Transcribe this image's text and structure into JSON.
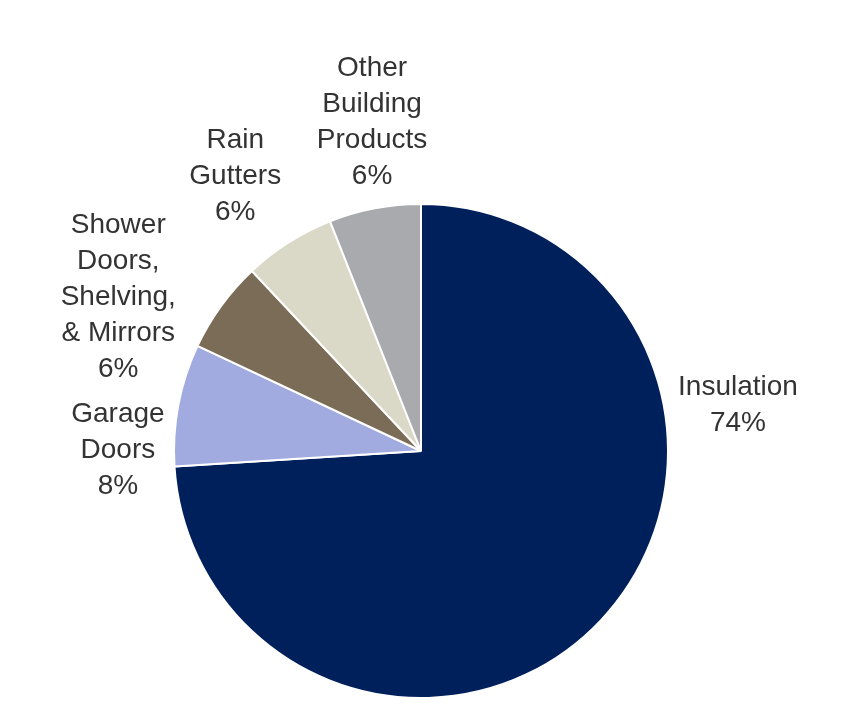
{
  "chart_data": {
    "type": "pie",
    "categories": [
      "Insulation",
      "Garage Doors",
      "Shower Doors, Shelving, & Mirrors",
      "Rain Gutters",
      "Other Building Products"
    ],
    "values": [
      74,
      8,
      6,
      6,
      6
    ],
    "value_labels": [
      "74%",
      "8%",
      "6%",
      "6%",
      "6%"
    ],
    "colors": [
      "#00205b",
      "#a1abe0",
      "#7b6c57",
      "#dad8c6",
      "#a8aaad"
    ],
    "data_labels": true
  }
}
